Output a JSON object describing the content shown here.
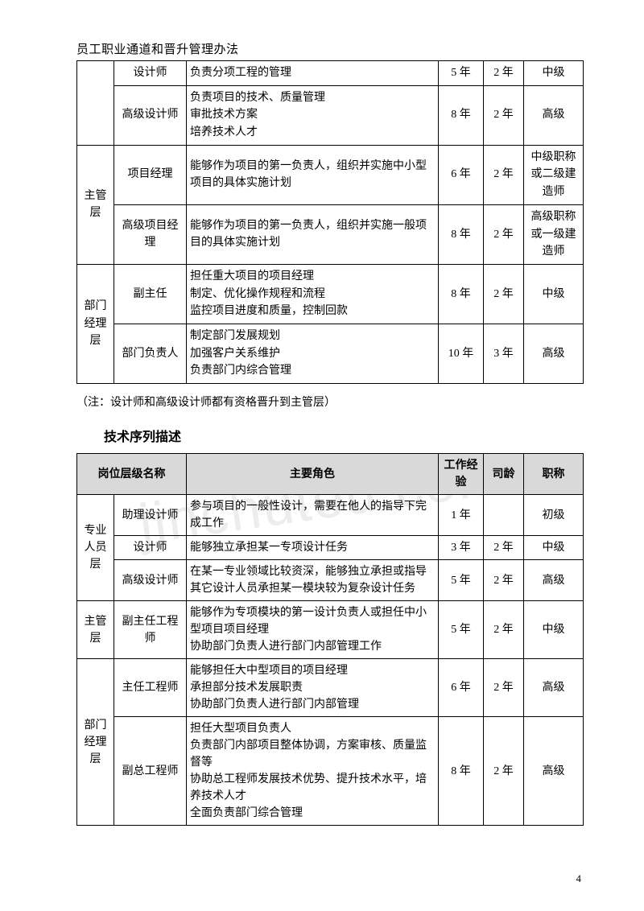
{
  "doc_title": "员工职业通道和晋升管理办法",
  "watermark": "jinchutou.com",
  "page_number": "4",
  "note": "（注：设计师和高级设计师都有资格晋升到主管层）",
  "section2_title": "技术序列描述",
  "table1": {
    "rows": [
      {
        "level": "",
        "position": "设计师",
        "role": "负责分项工程的管理",
        "exp": "5 年",
        "age": "2 年",
        "title": "中级"
      },
      {
        "level": "",
        "position": "高级设计师",
        "role": "负责项目的技术、质量管理\n审批技术方案\n培养技术人才",
        "exp": "8 年",
        "age": "2 年",
        "title": "高级"
      },
      {
        "level": "主管层",
        "position": "项目经理",
        "role": "能够作为项目的第一负责人，组织并实施中小型项目的具体实施计划",
        "exp": "6 年",
        "age": "2 年",
        "title": "中级职称或二级建造师"
      },
      {
        "level": "",
        "position": "高级项目经理",
        "role": "能够作为项目的第一负责人，组织并实施一般项目的具体实施计划",
        "exp": "8 年",
        "age": "2 年",
        "title": "高级职称或一级建造师"
      },
      {
        "level": "部门经理层",
        "position": "副主任",
        "role": "担任重大项目的项目经理\n制定、优化操作规程和流程\n监控项目进度和质量，控制回款",
        "exp": "8 年",
        "age": "2 年",
        "title": "中级"
      },
      {
        "level": "",
        "position": "部门负责人",
        "role": "制定部门发展规划\n加强客户关系维护\n负责部门内综合管理",
        "exp": "10 年",
        "age": "3 年",
        "title": "高级"
      }
    ]
  },
  "table2": {
    "headers": {
      "level": "岗位层级名称",
      "role": "主要角色",
      "exp": "工作经验",
      "age": "司龄",
      "title": "职称"
    },
    "rows": [
      {
        "level": "专业人员层",
        "position": "助理设计师",
        "role": "参与项目的一般性设计，需要在他人的指导下完成工作",
        "exp": "1 年",
        "age": "",
        "title": "初级"
      },
      {
        "level": "",
        "position": "设计师",
        "role": "能够独立承担某一专项设计任务",
        "exp": "3 年",
        "age": "2 年",
        "title": "中级"
      },
      {
        "level": "",
        "position": "高级设计师",
        "role": "在某一专业领域比较资深，能够独立承担或指导其它设计人员承担某一模块较为复杂设计任务",
        "exp": "5 年",
        "age": "2 年",
        "title": "高级"
      },
      {
        "level": "主管层",
        "position": "副主任工程师",
        "role": "能够作为专项模块的第一设计负责人或担任中小型项目项目经理\n协助部门负责人进行部门内部管理工作",
        "exp": "5 年",
        "age": "2 年",
        "title": "中级"
      },
      {
        "level": "部门经理层",
        "position": "主任工程师",
        "role": "能够担任大中型项目的项目经理\n承担部分技术发展职责\n协助部门负责人进行部门内部管理",
        "exp": "6 年",
        "age": "2 年",
        "title": "高级"
      },
      {
        "level": "",
        "position": "副总工程师",
        "role": "担任大型项目负责人\n负责部门内部项目整体协调，方案审核、质量监督等\n协助总工程师发展技术优势、提升技术水平，培养技术人才\n全面负责部门综合管理",
        "exp": "8 年",
        "age": "2 年",
        "title": "高级"
      }
    ]
  }
}
